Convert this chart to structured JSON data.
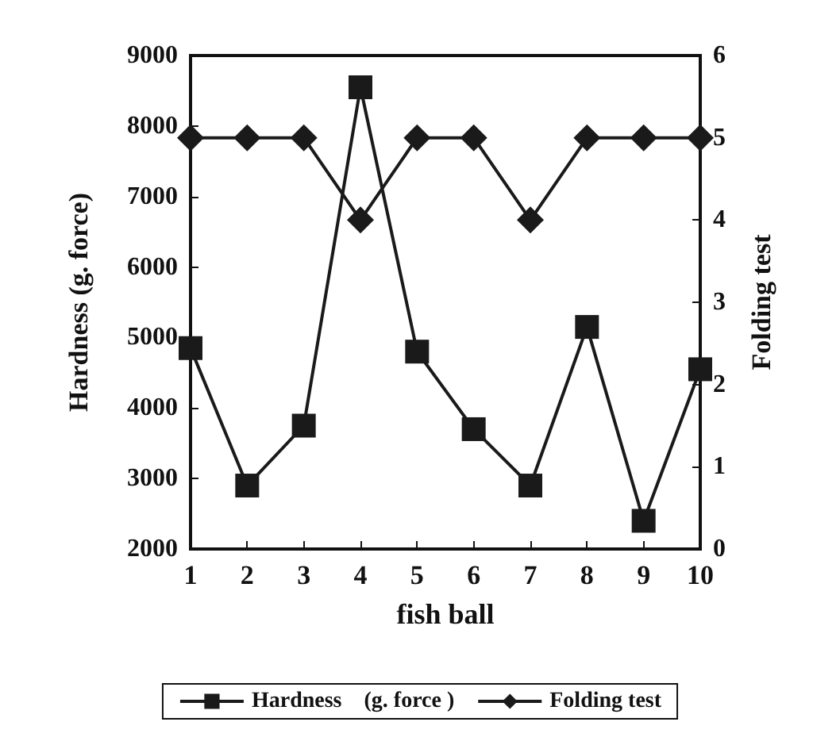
{
  "chart_data": {
    "type": "line",
    "xlabel": "fish ball",
    "ylabel": "Hardness (g. force)",
    "y2label": "Folding test",
    "categories": [
      "1",
      "2",
      "3",
      "4",
      "5",
      "6",
      "7",
      "8",
      "9",
      "10"
    ],
    "series": [
      {
        "name": "Hardness    (g. force )",
        "color": "#1a1a1a",
        "marker": "square",
        "values": [
          4850,
          2900,
          3750,
          8550,
          4800,
          3700,
          2900,
          5150,
          2400,
          4550
        ]
      },
      {
        "name": "Folding test",
        "color": "#1a1a1a",
        "marker": "diamond",
        "axis": "y2",
        "values": [
          5,
          5,
          5,
          4,
          5,
          5,
          4,
          5,
          5,
          5
        ]
      }
    ],
    "ylim": [
      2000,
      9000
    ],
    "yticks": [
      2000,
      3000,
      4000,
      5000,
      6000,
      7000,
      8000,
      9000
    ],
    "y2lim": [
      0,
      6
    ],
    "y2ticks": [
      0,
      1,
      2,
      3,
      4,
      5,
      6
    ],
    "grid": false,
    "legend": "bottom",
    "line_style": "solid"
  }
}
